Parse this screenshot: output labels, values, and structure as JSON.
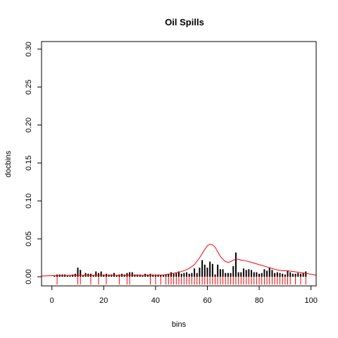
{
  "chart_data": {
    "type": "bar",
    "title": "Oil Spills",
    "xlabel": "bins",
    "ylabel": "docbins",
    "xlim": [
      -4,
      102
    ],
    "ylim": [
      -0.012,
      0.31
    ],
    "xticks": [
      "0",
      "20",
      "40",
      "60",
      "80",
      "100"
    ],
    "yticks": [
      "0.00",
      "0.05",
      "0.10",
      "0.15",
      "0.20",
      "0.25",
      "0.30"
    ],
    "grid": false,
    "bar_color": "#000000",
    "density_color": "#ff0000",
    "rug_color": "#ff0000",
    "bars": {
      "x": [
        1,
        2,
        3,
        4,
        5,
        6,
        7,
        8,
        9,
        10,
        11,
        12,
        13,
        14,
        15,
        16,
        17,
        18,
        19,
        20,
        21,
        22,
        23,
        24,
        25,
        26,
        27,
        28,
        29,
        30,
        31,
        32,
        33,
        34,
        35,
        36,
        37,
        38,
        39,
        40,
        41,
        42,
        43,
        44,
        45,
        46,
        47,
        48,
        49,
        50,
        51,
        52,
        53,
        54,
        55,
        56,
        57,
        58,
        59,
        60,
        61,
        62,
        63,
        64,
        65,
        66,
        67,
        68,
        69,
        70,
        71,
        72,
        73,
        74,
        75,
        76,
        77,
        78,
        79,
        80,
        81,
        82,
        83,
        84,
        85,
        86,
        87,
        88,
        89,
        90,
        91,
        92,
        93,
        94,
        95,
        96,
        97,
        98
      ],
      "values": [
        0.002,
        0.003,
        0.003,
        0.003,
        0.003,
        0.002,
        0.002,
        0.003,
        0.004,
        0.012,
        0.009,
        0.002,
        0.005,
        0.004,
        0.004,
        0.002,
        0.007,
        0.005,
        0.007,
        0.003,
        0.004,
        0.003,
        0.003,
        0.005,
        0.002,
        0.003,
        0.004,
        0.003,
        0.005,
        0.006,
        0.006,
        0.003,
        0.003,
        0.003,
        0.002,
        0.004,
        0.003,
        0.004,
        0.003,
        0.003,
        0.003,
        0.002,
        0.002,
        0.003,
        0.004,
        0.006,
        0.004,
        0.005,
        0.007,
        0.004,
        0.005,
        0.006,
        0.004,
        0.005,
        0.011,
        0.005,
        0.012,
        0.022,
        0.016,
        0.012,
        0.02,
        0.017,
        0.003,
        0.016,
        0.01,
        0.01,
        0.005,
        0.005,
        0.005,
        0.014,
        0.032,
        0.006,
        0.006,
        0.011,
        0.009,
        0.01,
        0.009,
        0.006,
        0.006,
        0.004,
        0.005,
        0.01,
        0.008,
        0.012,
        0.009,
        0.005,
        0.006,
        0.005,
        0.004,
        0.003,
        0.008,
        0.006,
        0.004,
        0.004,
        0.005,
        0.004,
        0.005,
        0.007
      ]
    },
    "density": {
      "x": [
        -4,
        0,
        5,
        10,
        15,
        20,
        25,
        30,
        35,
        40,
        43,
        46,
        49,
        51,
        53,
        55,
        57,
        59,
        60,
        61,
        62,
        63,
        64,
        65,
        66,
        67,
        68,
        69,
        70,
        71,
        72,
        73,
        75,
        77,
        79,
        81,
        83,
        85,
        87,
        89,
        91,
        93,
        95,
        97,
        99,
        102
      ],
      "y": [
        0.001,
        0.0015,
        0.0018,
        0.002,
        0.002,
        0.002,
        0.002,
        0.002,
        0.002,
        0.002,
        0.0025,
        0.004,
        0.006,
        0.008,
        0.011,
        0.016,
        0.025,
        0.036,
        0.041,
        0.043,
        0.042,
        0.039,
        0.033,
        0.027,
        0.023,
        0.02,
        0.019,
        0.02,
        0.022,
        0.023,
        0.023,
        0.022,
        0.021,
        0.019,
        0.017,
        0.015,
        0.013,
        0.011,
        0.009,
        0.008,
        0.008,
        0.007,
        0.006,
        0.005,
        0.004,
        0.002
      ]
    },
    "rug": [
      2,
      10,
      11,
      15,
      18,
      21,
      26,
      29,
      30,
      38,
      40,
      42,
      44,
      45,
      46,
      47,
      48,
      49,
      50,
      51,
      52,
      53,
      54,
      55,
      56,
      57,
      58,
      59,
      60,
      61,
      62,
      63,
      64,
      65,
      66,
      67,
      68,
      69,
      70,
      71,
      72,
      73,
      74,
      75,
      76,
      77,
      78,
      79,
      80,
      81,
      82,
      83,
      84,
      85,
      86,
      87,
      88,
      89,
      90,
      91,
      92,
      94,
      96,
      98
    ]
  }
}
